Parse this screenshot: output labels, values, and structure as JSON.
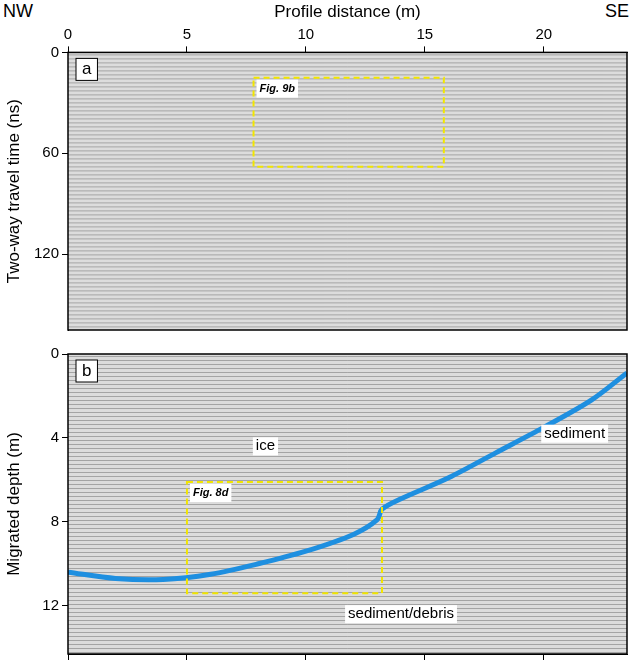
{
  "header": {
    "left": "NW",
    "right": "SE"
  },
  "chart_data": [
    {
      "type": "radargram",
      "panel": "a",
      "x_label": "Profile distance (m)",
      "y_label": "Two-way travel time (ns)",
      "xlim": [
        0,
        23.5
      ],
      "xticks": [
        0,
        5,
        10,
        15,
        20
      ],
      "ylim": [
        165,
        0
      ],
      "yticks": [
        0,
        60,
        120
      ],
      "grid": false,
      "boxes": [
        {
          "label": "Fig. 9b",
          "x": [
            7.8,
            15.8
          ],
          "y": [
            15,
            68
          ],
          "color": "#f2e600"
        }
      ]
    },
    {
      "type": "radargram",
      "panel": "b",
      "y_label": "Migrated depth (m)",
      "xlim": [
        0,
        23.5
      ],
      "xticks": [
        0,
        5,
        10,
        15,
        20
      ],
      "ylim": [
        14.3,
        0
      ],
      "yticks": [
        0,
        4,
        8,
        12
      ],
      "grid": false,
      "tick_labels": "y",
      "series": [
        {
          "color": "#1e8fe0",
          "x": [
            0,
            2,
            4,
            6,
            8,
            10,
            12,
            13,
            13.2,
            14,
            16,
            18,
            20,
            22,
            23.5
          ],
          "values": [
            10.4,
            10.7,
            10.75,
            10.5,
            10.0,
            9.4,
            8.6,
            7.9,
            7.4,
            6.9,
            5.9,
            4.7,
            3.5,
            2.2,
            0.9
          ]
        }
      ],
      "boxes": [
        {
          "label": "Fig. 8d",
          "x": [
            5,
            13.2
          ],
          "y": [
            6.1,
            11.4
          ],
          "color": "#f2e600"
        }
      ],
      "annotations": [
        {
          "text": "ice",
          "x": 8.3,
          "y": 4.4
        },
        {
          "text": "sediment",
          "x": 21.3,
          "y": 3.8
        },
        {
          "text": "sediment/debris",
          "x": 14,
          "y": 12.4
        }
      ]
    }
  ]
}
